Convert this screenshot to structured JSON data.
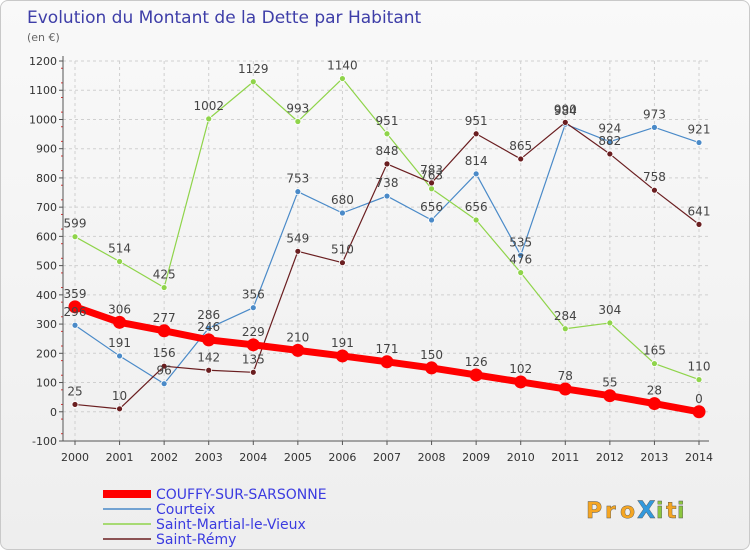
{
  "chart_data": {
    "type": "line",
    "title": "Evolution du Montant de la Dette par Habitant",
    "subtitle": "(en €)",
    "x": [
      "2000",
      "2001",
      "2002",
      "2003",
      "2004",
      "2005",
      "2006",
      "2007",
      "2008",
      "2009",
      "2010",
      "2011",
      "2012",
      "2013",
      "2014"
    ],
    "ylim": [
      -100,
      1200
    ],
    "yticks": [
      -100,
      0,
      100,
      200,
      300,
      400,
      500,
      600,
      700,
      800,
      900,
      1000,
      1100,
      1200
    ],
    "grid": true,
    "legend_position": "bottom-left",
    "series": [
      {
        "name": "COUFFY-SUR-SARSONNE",
        "color": "#ff0000",
        "emphasis": true,
        "values": [
          359,
          306,
          277,
          246,
          229,
          210,
          191,
          171,
          150,
          126,
          102,
          78,
          55,
          28,
          0
        ],
        "labels": [
          "359",
          "306",
          "277",
          "246",
          "229",
          "210",
          "191",
          "171",
          "150",
          "126",
          "102",
          "78",
          "55",
          "28",
          "0"
        ]
      },
      {
        "name": "Courteix",
        "color": "#4a8ac8",
        "emphasis": false,
        "values": [
          296,
          191,
          96,
          286,
          356,
          753,
          680,
          738,
          656,
          814,
          535,
          984,
          924,
          973,
          921
        ],
        "labels": [
          "296",
          "191",
          "96",
          "286",
          "356",
          "753",
          "680",
          "738",
          "656",
          "814",
          "535",
          "984",
          "924",
          "973",
          "921"
        ]
      },
      {
        "name": "Saint-Martial-le-Vieux",
        "color": "#8fd44a",
        "emphasis": false,
        "values": [
          599,
          514,
          425,
          1002,
          1129,
          993,
          1140,
          951,
          763,
          656,
          476,
          284,
          304,
          165,
          110
        ],
        "labels": [
          "599",
          "514",
          "425",
          "1002",
          "1129",
          "993",
          "1140",
          "951",
          "763",
          "656",
          "476",
          "284",
          "304",
          "165",
          "110"
        ]
      },
      {
        "name": "Saint-Rémy",
        "color": "#6a1e20",
        "emphasis": false,
        "values": [
          25,
          10,
          156,
          142,
          135,
          549,
          510,
          848,
          783,
          951,
          865,
          990,
          882,
          758,
          641
        ],
        "labels": [
          "25",
          "10",
          "156",
          "142",
          "135",
          "549",
          "510",
          "848",
          "783",
          "951",
          "865",
          "990",
          "882",
          "758",
          "641"
        ]
      }
    ]
  },
  "logo": {
    "text": "ProXiti",
    "letters": [
      "P",
      "r",
      "o",
      "X",
      "i",
      "t",
      "i"
    ]
  }
}
